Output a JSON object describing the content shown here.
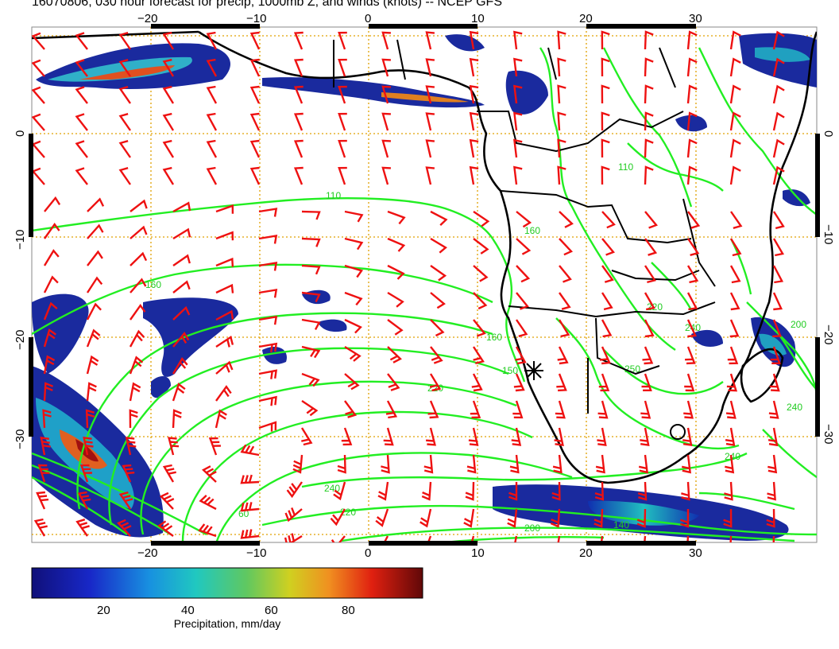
{
  "title": "16070806, 030 hour forecast for precip, 1000mb Z, and winds (knots) -- NCEP GFS",
  "map": {
    "lon_ticks": [
      "−20",
      "−10",
      "0",
      "10",
      "20",
      "30"
    ],
    "lat_ticks": [
      "0",
      "−10",
      "−20",
      "−30"
    ],
    "contour_labels": [
      "110",
      "160",
      "220",
      "240",
      "200",
      "160",
      "140",
      "110",
      "150",
      "240",
      "250",
      "220",
      "200",
      "240",
      "240",
      "60",
      "220",
      "160"
    ],
    "colors": {
      "contour": "#22ee22",
      "barb": "#ee1111",
      "coast": "#000000",
      "grid": "#e0a000"
    }
  },
  "colorbar": {
    "ticks": [
      "20",
      "40",
      "60",
      "80"
    ],
    "label": "Precipitation, mm/day"
  }
}
